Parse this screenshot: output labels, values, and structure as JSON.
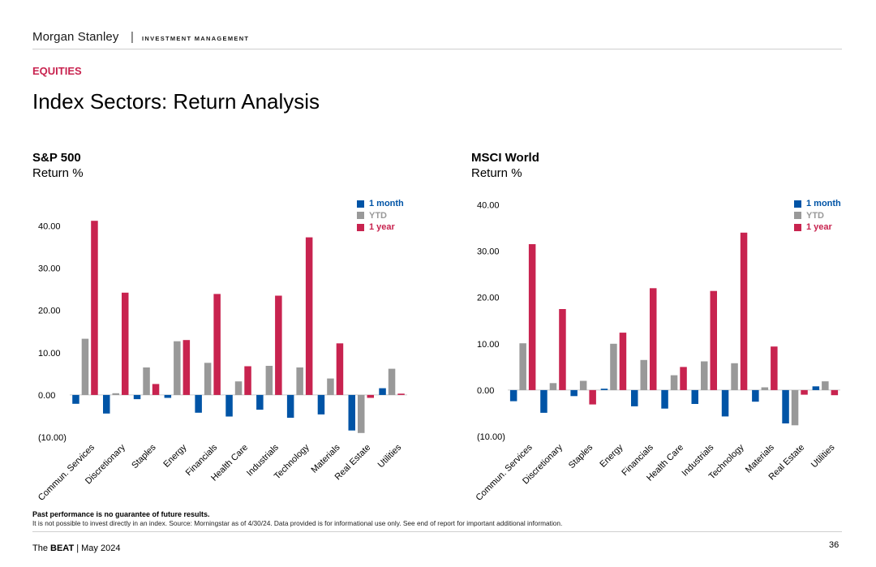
{
  "header": {
    "brand": "Morgan Stanley",
    "separator": "|",
    "division": "INVESTMENT MANAGEMENT",
    "section": "EQUITIES",
    "title": "Index Sectors: Return Analysis"
  },
  "colors": {
    "month": "#0054a6",
    "ytd": "#999999",
    "year": "#c8234f",
    "section": "#c8234f"
  },
  "legend": {
    "month": "1 month",
    "ytd": "YTD",
    "year": "1 year"
  },
  "chart_data": [
    {
      "type": "bar",
      "title": "S&P 500",
      "ylabel": "Return %",
      "ylim": [
        -10,
        40
      ],
      "yticks": [
        "40.00",
        "30.00",
        "20.00",
        "10.00",
        "0.00",
        "(10.00)"
      ],
      "legend_position": "top-right",
      "categories": [
        "Commun. Services",
        "Discretionary",
        "Staples",
        "Energy",
        "Financials",
        "Health Care",
        "Industrials",
        "Technology",
        "Materials",
        "Real Estate",
        "Utilities"
      ],
      "series": [
        {
          "name": "1 month",
          "values": [
            -2.1,
            -4.4,
            -1.0,
            -0.7,
            -4.2,
            -5.1,
            -3.5,
            -5.4,
            -4.6,
            -8.4,
            1.6
          ]
        },
        {
          "name": "YTD",
          "values": [
            13.3,
            0.4,
            6.5,
            12.7,
            7.6,
            3.2,
            6.9,
            6.5,
            3.9,
            -9.0,
            6.2
          ]
        },
        {
          "name": "1 year",
          "values": [
            41.2,
            24.2,
            2.6,
            13.0,
            23.9,
            6.8,
            23.5,
            37.3,
            12.2,
            -0.7,
            0.3
          ]
        }
      ]
    },
    {
      "type": "bar",
      "title": "MSCI World",
      "ylabel": "Return %",
      "ylim": [
        -10,
        40
      ],
      "yticks": [
        "40.00",
        "30.00",
        "20.00",
        "10.00",
        "0.00",
        "(10.00)"
      ],
      "legend_position": "top-right",
      "categories": [
        "Commun. Services",
        "Discretionary",
        "Staples",
        "Energy",
        "Financials",
        "Health Care",
        "Industrials",
        "Technology",
        "Materials",
        "Real Estate",
        "Utilities"
      ],
      "series": [
        {
          "name": "1 month",
          "values": [
            -2.4,
            -4.9,
            -1.3,
            0.3,
            -3.5,
            -4.0,
            -3.0,
            -5.7,
            -2.5,
            -7.2,
            0.8
          ]
        },
        {
          "name": "YTD",
          "values": [
            10.1,
            1.5,
            2.0,
            10.0,
            6.5,
            3.2,
            6.2,
            5.8,
            0.6,
            -7.6,
            1.9
          ]
        },
        {
          "name": "1 year",
          "values": [
            31.5,
            17.5,
            -3.1,
            12.4,
            22.0,
            5.0,
            21.4,
            34.0,
            9.4,
            -1.0,
            -1.1
          ]
        }
      ]
    }
  ],
  "footer": {
    "disclaimer_bold": "Past performance is no guarantee of future results.",
    "disclaimer": "It is not possible to invest directly in an index. Source: Morningstar as of 4/30/24. Data provided is for informational use only. See end of report for important additional information.",
    "the": "The",
    "beat": "BEAT",
    "date": "| May 2024",
    "page": "36"
  }
}
